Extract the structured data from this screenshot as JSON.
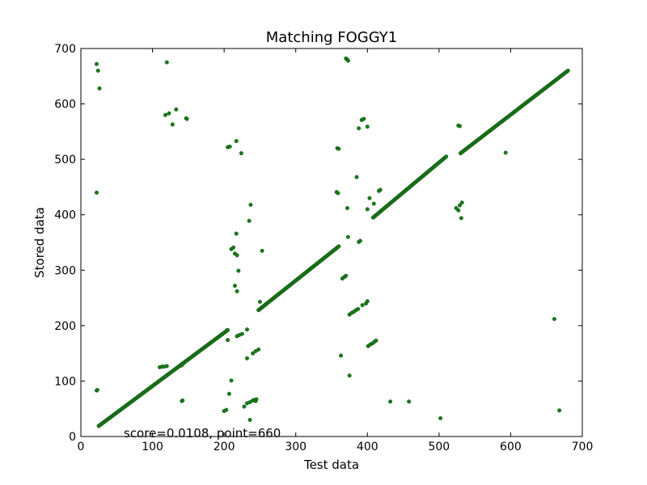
{
  "chart_data": {
    "type": "scatter",
    "title": "Matching FOGGY1",
    "xlabel": "Test data",
    "ylabel": "Stored data",
    "xlim": [
      0,
      700
    ],
    "ylim": [
      0,
      700
    ],
    "xticks": [
      "0",
      "100",
      "200",
      "300",
      "400",
      "500",
      "600",
      "700"
    ],
    "yticks": [
      "0",
      "100",
      "200",
      "300",
      "400",
      "500",
      "600",
      "700"
    ],
    "grid": false,
    "legend": "none",
    "annotation": "score=0.0108, point=660",
    "marker_color": "#1a7a1a",
    "series": [
      {
        "diagonal_segments": [
          {
            "x0": 25,
            "x1": 205,
            "y0": 19,
            "y1": 192
          },
          {
            "x0": 248,
            "x1": 360,
            "y0": 228,
            "y1": 343
          },
          {
            "x0": 408,
            "x1": 510,
            "y0": 395,
            "y1": 505
          },
          {
            "x0": 530,
            "x1": 680,
            "y0": 511,
            "y1": 660
          }
        ],
        "scatter_points": [
          [
            22,
            672
          ],
          [
            24,
            660
          ],
          [
            26,
            628
          ],
          [
            22,
            440
          ],
          [
            22,
            83
          ],
          [
            23,
            84
          ],
          [
            120,
            675
          ],
          [
            118,
            580
          ],
          [
            123,
            583
          ],
          [
            128,
            563
          ],
          [
            133,
            590
          ],
          [
            147,
            574
          ],
          [
            148,
            573
          ],
          [
            110,
            125
          ],
          [
            113,
            126
          ],
          [
            116,
            126
          ],
          [
            120,
            127
          ],
          [
            118,
            108
          ],
          [
            140,
            128
          ],
          [
            142,
            130
          ],
          [
            141,
            64
          ],
          [
            142,
            65
          ],
          [
            205,
            522
          ],
          [
            208,
            523
          ],
          [
            217,
            533
          ],
          [
            224,
            511
          ],
          [
            210,
            338
          ],
          [
            213,
            341
          ],
          [
            215,
            330
          ],
          [
            217,
            366
          ],
          [
            218,
            327
          ],
          [
            220,
            299
          ],
          [
            215,
            272
          ],
          [
            218,
            262
          ],
          [
            204,
            192
          ],
          [
            205,
            174
          ],
          [
            218,
            181
          ],
          [
            221,
            183
          ],
          [
            225,
            185
          ],
          [
            232,
            193
          ],
          [
            207,
            77
          ],
          [
            210,
            101
          ],
          [
            200,
            46
          ],
          [
            203,
            48
          ],
          [
            228,
            54
          ],
          [
            232,
            60
          ],
          [
            236,
            62
          ],
          [
            240,
            65
          ],
          [
            242,
            66
          ],
          [
            244,
            64
          ],
          [
            245,
            67
          ],
          [
            236,
            30
          ],
          [
            232,
            141
          ],
          [
            240,
            150
          ],
          [
            244,
            154
          ],
          [
            248,
            157
          ],
          [
            237,
            418
          ],
          [
            235,
            389
          ],
          [
            253,
            335
          ],
          [
            250,
            243
          ],
          [
            370,
            682
          ],
          [
            372,
            680
          ],
          [
            373,
            678
          ],
          [
            392,
            571
          ],
          [
            395,
            573
          ],
          [
            388,
            556
          ],
          [
            400,
            559
          ],
          [
            358,
            520
          ],
          [
            360,
            519
          ],
          [
            357,
            441
          ],
          [
            359,
            439
          ],
          [
            372,
            412
          ],
          [
            385,
            468
          ],
          [
            403,
            430
          ],
          [
            409,
            420
          ],
          [
            416,
            443
          ],
          [
            418,
            445
          ],
          [
            400,
            410
          ],
          [
            365,
            285
          ],
          [
            368,
            288
          ],
          [
            370,
            290
          ],
          [
            373,
            360
          ],
          [
            388,
            351
          ],
          [
            390,
            353
          ],
          [
            375,
            220
          ],
          [
            378,
            223
          ],
          [
            381,
            225
          ],
          [
            384,
            228
          ],
          [
            387,
            230
          ],
          [
            393,
            237
          ],
          [
            398,
            240
          ],
          [
            400,
            244
          ],
          [
            401,
            163
          ],
          [
            404,
            166
          ],
          [
            407,
            168
          ],
          [
            410,
            171
          ],
          [
            412,
            173
          ],
          [
            363,
            146
          ],
          [
            375,
            110
          ],
          [
            432,
            63
          ],
          [
            458,
            63
          ],
          [
            502,
            33
          ],
          [
            524,
            412
          ],
          [
            527,
            408
          ],
          [
            529,
            417
          ],
          [
            532,
            422
          ],
          [
            531,
            394
          ],
          [
            527,
            561
          ],
          [
            529,
            560
          ],
          [
            593,
            512
          ],
          [
            661,
            212
          ],
          [
            668,
            47
          ]
        ]
      }
    ]
  }
}
